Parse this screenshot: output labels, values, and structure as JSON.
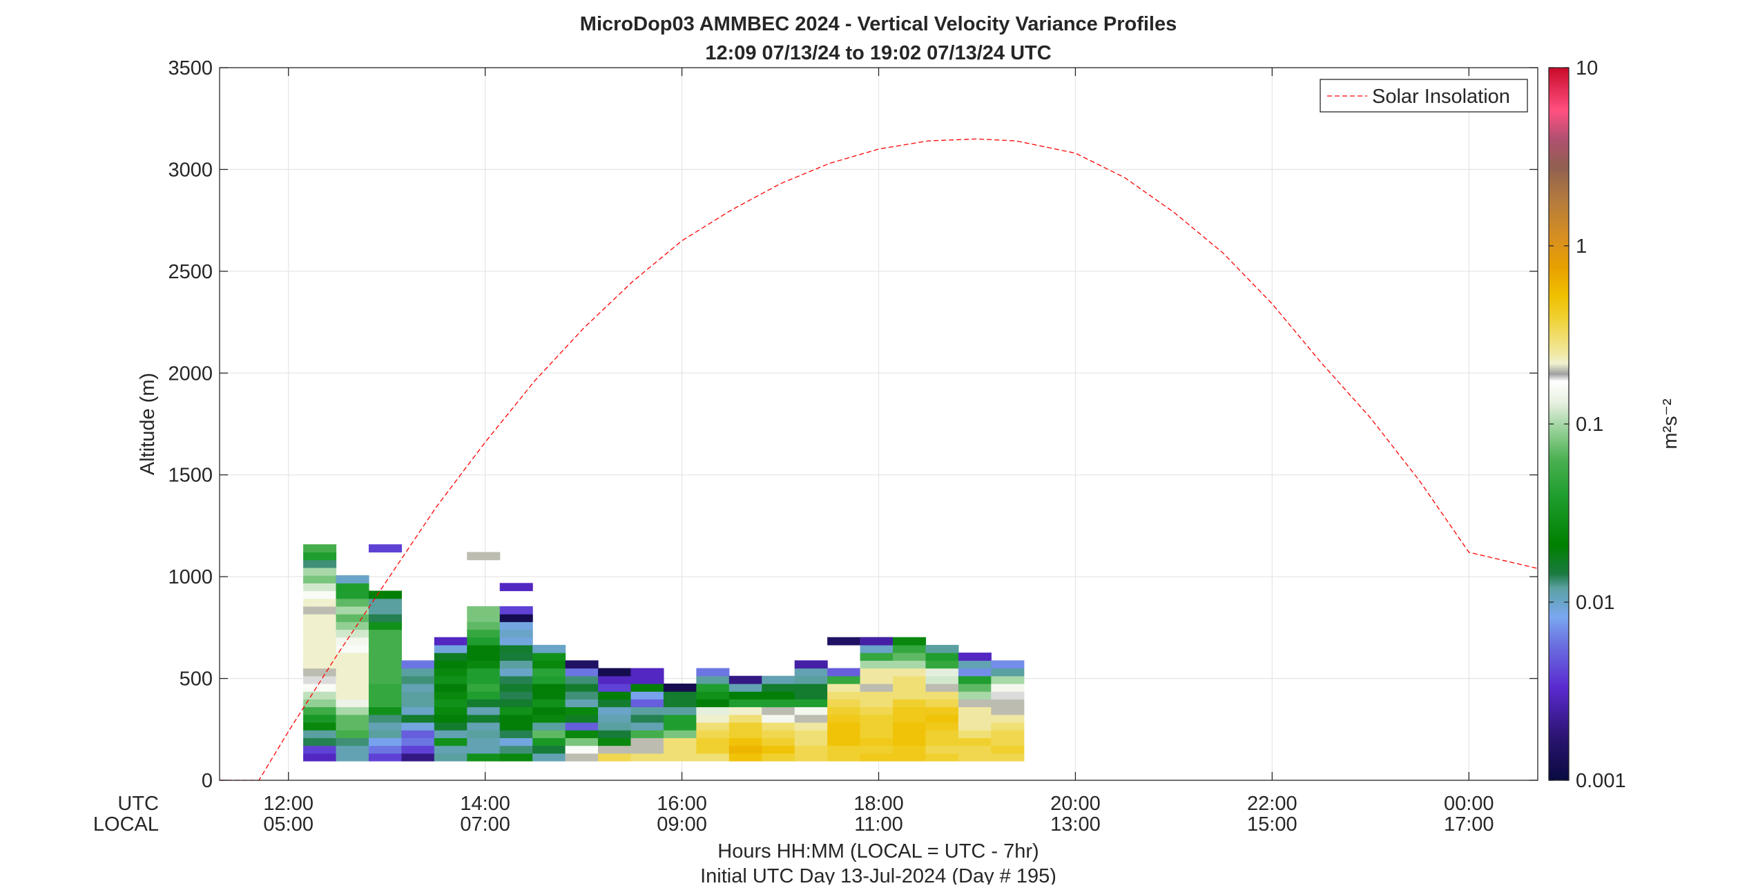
{
  "chart_data": {
    "type": "heatmap",
    "title": "MicroDop03 AMMBEC 2024 - Vertical Velocity Variance Profiles",
    "subtitle": "12:09 07/13/24 to 19:02 07/13/24  UTC",
    "ylabel": "Altitude (m)",
    "xlabel": "Hours HH:MM  (LOCAL = UTC - 7hr)",
    "xlabel2": "Initial UTC Day 13-Jul-2024 (Day # 195)",
    "xlim_hours": [
      11.3,
      24.7
    ],
    "ylim": [
      0,
      3500
    ],
    "y_ticks": [
      0,
      500,
      1000,
      1500,
      2000,
      2500,
      3000,
      3500
    ],
    "x_ticks_hours": [
      12,
      14,
      16,
      18,
      20,
      22,
      24
    ],
    "utc_row_label": "UTC",
    "local_row_label": "LOCAL",
    "utc_tick_labels": [
      "12:00",
      "14:00",
      "16:00",
      "18:00",
      "20:00",
      "22:00",
      "00:00"
    ],
    "local_tick_labels": [
      "05:00",
      "07:00",
      "09:00",
      "11:00",
      "13:00",
      "15:00",
      "17:00"
    ],
    "grid": true,
    "colorbar": {
      "label": "m²s⁻²",
      "scale": "log",
      "range": [
        0.001,
        10
      ],
      "tick_values": [
        0.001,
        0.01,
        0.1,
        1,
        10
      ],
      "tick_labels": [
        "0.001",
        "0.01",
        "0.1",
        "1",
        "10"
      ]
    },
    "legend": {
      "position": "top-right",
      "entries": [
        "Solar Insolation"
      ]
    },
    "solar_insolation": {
      "name": "Solar Insolation",
      "color": "#ff0000",
      "style": "dashed",
      "x_hours": [
        11.3,
        11.7,
        12.0,
        12.5,
        13.0,
        13.5,
        14.0,
        14.5,
        15.0,
        15.5,
        16.0,
        16.5,
        17.0,
        17.5,
        18.0,
        18.5,
        19.0,
        19.4,
        20.0,
        20.5,
        21.0,
        21.5,
        22.0,
        22.5,
        23.0,
        23.5,
        24.0,
        24.7
      ],
      "y": [
        0,
        0,
        240,
        620,
        980,
        1340,
        1660,
        1960,
        2220,
        2450,
        2650,
        2800,
        2930,
        3030,
        3100,
        3140,
        3150,
        3140,
        3080,
        2960,
        2790,
        2590,
        2340,
        2050,
        1780,
        1470,
        1120,
        1040
      ]
    },
    "heatmap_layout": {
      "x_start_hours": 12.15,
      "bin_width_hours": 0.333,
      "altitude_start_m": 95,
      "bin_height_m": 38
    },
    "variance_profiles": [
      {
        "col": 0,
        "bin_start": 0,
        "values": [
          0.003,
          0.004,
          0.014,
          0.012,
          0.025,
          0.035,
          0.055,
          0.09,
          0.11,
          0.16,
          0.18,
          0.2,
          0.22,
          0.22,
          0.22,
          0.22,
          0.22,
          0.22,
          0.22,
          0.2,
          0.22,
          0.16,
          0.12,
          0.08,
          0.1,
          0.013,
          0.04,
          0.06
        ]
      },
      {
        "col": 1,
        "bin_start": 0,
        "values": [
          0.011,
          0.011,
          0.013,
          0.06,
          0.07,
          0.07,
          0.1,
          0.14,
          0.22,
          0.22,
          0.22,
          0.22,
          0.22,
          0.22,
          0.16,
          0.15,
          0.12,
          0.09,
          0.07,
          0.1,
          0.07,
          0.04,
          0.04,
          0.01
        ]
      },
      {
        "col": 2,
        "bin_start": 0,
        "values": [
          0.004,
          0.006,
          0.008,
          0.012,
          0.011,
          0.013,
          0.03,
          0.05,
          0.05,
          0.05,
          0.06,
          0.06,
          0.06,
          0.06,
          0.06,
          0.06,
          0.06,
          0.03,
          0.014,
          0.012,
          0.012,
          0.02
        ]
      },
      {
        "col": 2,
        "bin_start": 27,
        "values": [
          0.004
        ]
      },
      {
        "col": 3,
        "bin_start": 0,
        "values": [
          0.002,
          0.004,
          0.006,
          0.005,
          0.009,
          0.016,
          0.01,
          0.012,
          0.012,
          0.011,
          0.013,
          0.012,
          0.006
        ]
      },
      {
        "col": 4,
        "bin_start": 0,
        "values": [
          0.012,
          0.011,
          0.03,
          0.011,
          0.016,
          0.02,
          0.025,
          0.03,
          0.025,
          0.02,
          0.03,
          0.025,
          0.02,
          0.017,
          0.009,
          0.003
        ]
      },
      {
        "col": 5,
        "bin_start": 0,
        "values": [
          0.03,
          0.011,
          0.011,
          0.012,
          0.011,
          0.016,
          0.011,
          0.016,
          0.04,
          0.05,
          0.04,
          0.04,
          0.025,
          0.02,
          0.02,
          0.04,
          0.05,
          0.07,
          0.08,
          0.08
        ]
      },
      {
        "col": 5,
        "bin_start": 26,
        "values": [
          0.2
        ]
      },
      {
        "col": 6,
        "bin_start": 0,
        "values": [
          0.025,
          0.013,
          0.009,
          0.014,
          0.02,
          0.02,
          0.03,
          0.016,
          0.014,
          0.016,
          0.014,
          0.01,
          0.012,
          0.015,
          0.016,
          0.009,
          0.01,
          0.009,
          0.0012,
          0.004
        ]
      },
      {
        "col": 6,
        "bin_start": 22,
        "values": [
          0.003
        ]
      },
      {
        "col": 7,
        "bin_start": 0,
        "values": [
          0.011,
          0.015,
          0.035,
          0.07,
          0.012,
          0.025,
          0.02,
          0.03,
          0.02,
          0.02,
          0.04,
          0.045,
          0.025,
          0.03,
          0.01
        ]
      },
      {
        "col": 8,
        "bin_start": 0,
        "values": [
          0.2,
          0.16,
          0.08,
          0.025,
          0.005,
          0.017,
          0.025,
          0.011,
          0.013,
          0.016,
          0.013,
          0.006,
          0.0015
        ]
      },
      {
        "col": 9,
        "bin_start": 0,
        "values": [
          0.35,
          0.2,
          0.025,
          0.015,
          0.012,
          0.011,
          0.01,
          0.016,
          0.02,
          0.004,
          0.003,
          0.0012
        ]
      },
      {
        "col": 10,
        "bin_start": 0,
        "values": [
          0.3,
          0.2,
          0.2,
          0.06,
          0.011,
          0.014,
          0.012,
          0.005,
          0.008,
          0.02,
          0.003,
          0.003
        ]
      },
      {
        "col": 11,
        "bin_start": 0,
        "values": [
          0.3,
          0.3,
          0.3,
          0.08,
          0.04,
          0.04,
          0.012,
          0.016,
          0.016,
          0.0012
        ]
      },
      {
        "col": 12,
        "bin_start": 0,
        "values": [
          0.3,
          0.4,
          0.4,
          0.35,
          0.3,
          0.22,
          0.13,
          0.02,
          0.03,
          0.04,
          0.012,
          0.006
        ]
      },
      {
        "col": 13,
        "bin_start": 0,
        "values": [
          0.5,
          0.6,
          0.5,
          0.4,
          0.4,
          0.3,
          0.22,
          0.04,
          0.02,
          0.011,
          0.002
        ]
      },
      {
        "col": 14,
        "bin_start": 0,
        "values": [
          0.4,
          0.5,
          0.4,
          0.35,
          0.3,
          0.15,
          0.2,
          0.04,
          0.02,
          0.016,
          0.011
        ]
      },
      {
        "col": 15,
        "bin_start": 0,
        "values": [
          0.35,
          0.35,
          0.3,
          0.3,
          0.25,
          0.2,
          0.15,
          0.04,
          0.016,
          0.016,
          0.012,
          0.011,
          0.0025
        ]
      },
      {
        "col": 16,
        "bin_start": 0,
        "values": [
          0.4,
          0.4,
          0.5,
          0.5,
          0.5,
          0.45,
          0.4,
          0.35,
          0.3,
          0.25,
          0.05,
          0.005
        ]
      },
      {
        "col": 16,
        "bin_start": 15,
        "values": [
          0.0015
        ]
      },
      {
        "col": 17,
        "bin_start": 0,
        "values": [
          0.45,
          0.4,
          0.45,
          0.4,
          0.4,
          0.4,
          0.35,
          0.3,
          0.3,
          0.2,
          0.25,
          0.25,
          0.1,
          0.05,
          0.01,
          0.03
        ]
      },
      {
        "col": 17,
        "bin_start": 15,
        "values": [
          0.0025
        ]
      },
      {
        "col": 18,
        "bin_start": 0,
        "values": [
          0.45,
          0.45,
          0.5,
          0.5,
          0.5,
          0.45,
          0.45,
          0.4,
          0.3,
          0.3,
          0.3,
          0.25,
          0.1,
          0.07,
          0.05,
          0.025
        ]
      },
      {
        "col": 19,
        "bin_start": 0,
        "values": [
          0.4,
          0.35,
          0.4,
          0.4,
          0.45,
          0.5,
          0.45,
          0.35,
          0.3,
          0.2,
          0.12,
          0.13,
          0.05,
          0.04,
          0.012
        ]
      },
      {
        "col": 20,
        "bin_start": 0,
        "values": [
          0.35,
          0.35,
          0.4,
          0.3,
          0.25,
          0.25,
          0.25,
          0.2,
          0.1,
          0.07,
          0.04,
          0.007,
          0.011,
          0.003
        ]
      },
      {
        "col": 21,
        "bin_start": 0,
        "values": [
          0.35,
          0.4,
          0.35,
          0.35,
          0.3,
          0.25,
          0.2,
          0.2,
          0.18,
          0.15,
          0.1,
          0.012,
          0.007
        ]
      }
    ]
  }
}
